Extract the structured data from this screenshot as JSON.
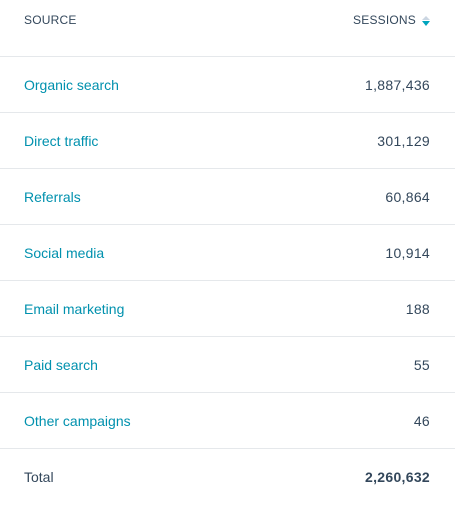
{
  "header": {
    "source_label": "SOURCE",
    "sessions_label": "SESSIONS",
    "sort_icon": "sort-descending-icon",
    "accent_color": "#00a4bd"
  },
  "rows": [
    {
      "source": "Organic search",
      "sessions": "1,887,436"
    },
    {
      "source": "Direct traffic",
      "sessions": "301,129"
    },
    {
      "source": "Referrals",
      "sessions": "60,864"
    },
    {
      "source": "Social media",
      "sessions": "10,914"
    },
    {
      "source": "Email marketing",
      "sessions": "188"
    },
    {
      "source": "Paid search",
      "sessions": "55"
    },
    {
      "source": "Other campaigns",
      "sessions": "46"
    }
  ],
  "total": {
    "label": "Total",
    "sessions": "2,260,632"
  },
  "colors": {
    "link": "#0091ae",
    "text": "#33475b",
    "divider": "#e5e8eb"
  }
}
